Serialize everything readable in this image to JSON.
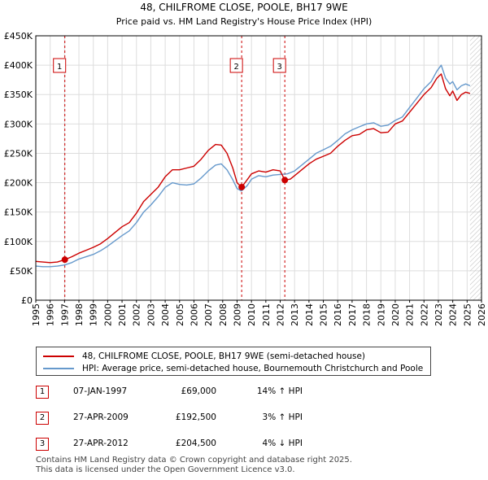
{
  "chart_data": {
    "type": "line",
    "title": "48, CHILFROME CLOSE, POOLE, BH17 9WE",
    "subtitle": "Price paid vs. HM Land Registry's House Price Index (HPI)",
    "xlim": [
      1995,
      2026
    ],
    "ylim": [
      0,
      450000
    ],
    "y_ticks": [
      0,
      50000,
      100000,
      150000,
      200000,
      250000,
      300000,
      350000,
      400000,
      450000
    ],
    "y_tick_labels": [
      "£0",
      "£50K",
      "£100K",
      "£150K",
      "£200K",
      "£250K",
      "£300K",
      "£350K",
      "£400K",
      "£450K"
    ],
    "x_ticks": [
      1995,
      1996,
      1997,
      1998,
      1999,
      2000,
      2001,
      2002,
      2003,
      2004,
      2005,
      2006,
      2007,
      2008,
      2009,
      2010,
      2011,
      2012,
      2013,
      2014,
      2015,
      2016,
      2017,
      2018,
      2019,
      2020,
      2021,
      2022,
      2023,
      2024,
      2025,
      2026
    ],
    "x_tick_labels": [
      "1995",
      "1996",
      "1997",
      "1998",
      "1999",
      "2000",
      "2001",
      "2002",
      "2003",
      "2004",
      "2005",
      "2006",
      "2007",
      "2008",
      "2009",
      "2010",
      "2011",
      "2012",
      "2013",
      "2014",
      "2015",
      "2016",
      "2017",
      "2018",
      "2019",
      "2020",
      "2021",
      "2022",
      "2023",
      "2024",
      "2025",
      "2026"
    ],
    "hatch_from": 2025.2,
    "series": [
      {
        "name": "48, CHILFROME CLOSE, POOLE, BH17 9WE (semi-detached house)",
        "color": "#cc0000",
        "x": [
          1995.0,
          1995.5,
          1996.0,
          1996.5,
          1997.02,
          1997.5,
          1998.0,
          1998.5,
          1999.0,
          1999.5,
          2000.0,
          2000.5,
          2001.0,
          2001.5,
          2002.0,
          2002.5,
          2003.0,
          2003.5,
          2004.0,
          2004.5,
          2005.0,
          2005.5,
          2006.0,
          2006.5,
          2007.0,
          2007.5,
          2007.9,
          2008.3,
          2008.7,
          2009.0,
          2009.32,
          2009.7,
          2010.0,
          2010.5,
          2011.0,
          2011.5,
          2012.0,
          2012.32,
          2012.7,
          2013.0,
          2013.5,
          2014.0,
          2014.5,
          2015.0,
          2015.5,
          2016.0,
          2016.5,
          2017.0,
          2017.5,
          2018.0,
          2018.5,
          2019.0,
          2019.5,
          2020.0,
          2020.5,
          2021.0,
          2021.5,
          2022.0,
          2022.5,
          2022.9,
          2023.2,
          2023.5,
          2023.8,
          2024.0,
          2024.3,
          2024.6,
          2024.9,
          2025.2
        ],
        "y": [
          66000,
          65000,
          64000,
          65000,
          69000,
          74000,
          80000,
          85000,
          90000,
          96000,
          105000,
          115000,
          125000,
          132000,
          148000,
          168000,
          180000,
          192000,
          210000,
          222000,
          222000,
          225000,
          228000,
          240000,
          255000,
          265000,
          264000,
          250000,
          225000,
          200000,
          192500,
          205000,
          215000,
          220000,
          218000,
          222000,
          220000,
          204500,
          206000,
          212000,
          222000,
          232000,
          240000,
          245000,
          250000,
          262000,
          272000,
          280000,
          282000,
          290000,
          292000,
          285000,
          286000,
          300000,
          305000,
          320000,
          335000,
          350000,
          362000,
          378000,
          385000,
          360000,
          348000,
          356000,
          340000,
          350000,
          354000,
          352000
        ]
      },
      {
        "name": "HPI: Average price, semi-detached house, Bournemouth Christchurch and Poole",
        "color": "#6699cc",
        "x": [
          1995.0,
          1995.5,
          1996.0,
          1996.5,
          1997.0,
          1997.5,
          1998.0,
          1998.5,
          1999.0,
          1999.5,
          2000.0,
          2000.5,
          2001.0,
          2001.5,
          2002.0,
          2002.5,
          2003.0,
          2003.5,
          2004.0,
          2004.5,
          2005.0,
          2005.5,
          2006.0,
          2006.5,
          2007.0,
          2007.5,
          2007.9,
          2008.3,
          2008.7,
          2009.0,
          2009.3,
          2009.7,
          2010.0,
          2010.5,
          2011.0,
          2011.5,
          2012.0,
          2012.5,
          2013.0,
          2013.5,
          2014.0,
          2014.5,
          2015.0,
          2015.5,
          2016.0,
          2016.5,
          2017.0,
          2017.5,
          2018.0,
          2018.5,
          2019.0,
          2019.5,
          2020.0,
          2020.5,
          2021.0,
          2021.5,
          2022.0,
          2022.5,
          2022.9,
          2023.2,
          2023.5,
          2023.8,
          2024.0,
          2024.3,
          2024.6,
          2024.9,
          2025.2
        ],
        "y": [
          58000,
          57000,
          57000,
          58000,
          60000,
          64000,
          70000,
          74000,
          78000,
          84000,
          92000,
          101000,
          110000,
          118000,
          132000,
          150000,
          162000,
          176000,
          192000,
          200000,
          197000,
          196000,
          198000,
          208000,
          220000,
          230000,
          232000,
          222000,
          205000,
          190000,
          186000,
          195000,
          206000,
          212000,
          210000,
          213000,
          214000,
          215000,
          220000,
          230000,
          240000,
          250000,
          256000,
          262000,
          272000,
          283000,
          290000,
          295000,
          300000,
          302000,
          296000,
          298000,
          306000,
          312000,
          328000,
          344000,
          360000,
          372000,
          390000,
          400000,
          378000,
          368000,
          372000,
          358000,
          365000,
          368000,
          365000
        ]
      }
    ],
    "sales": [
      {
        "label": "1",
        "x": 1997.02,
        "y": 69000
      },
      {
        "label": "2",
        "x": 2009.32,
        "y": 192500
      },
      {
        "label": "3",
        "x": 2012.32,
        "y": 204500
      }
    ]
  },
  "legend": {
    "property": "48, CHILFROME CLOSE, POOLE, BH17 9WE (semi-detached house)",
    "hpi": "HPI: Average price, semi-detached house, Bournemouth Christchurch and Poole"
  },
  "colors": {
    "property": "#cc0000",
    "hpi": "#6699cc",
    "grid": "#dddddd",
    "plot_bg": "#ffffff"
  },
  "sales_table": [
    {
      "num": "1",
      "date": "07-JAN-1997",
      "price": "£69,000",
      "hpi": "14% ↑ HPI"
    },
    {
      "num": "2",
      "date": "27-APR-2009",
      "price": "£192,500",
      "hpi": "3% ↑ HPI"
    },
    {
      "num": "3",
      "date": "27-APR-2012",
      "price": "£204,500",
      "hpi": "4% ↓ HPI"
    }
  ],
  "footer": {
    "line1": "Contains HM Land Registry data © Crown copyright and database right 2025.",
    "line2": "This data is licensed under the Open Government Licence v3.0."
  }
}
